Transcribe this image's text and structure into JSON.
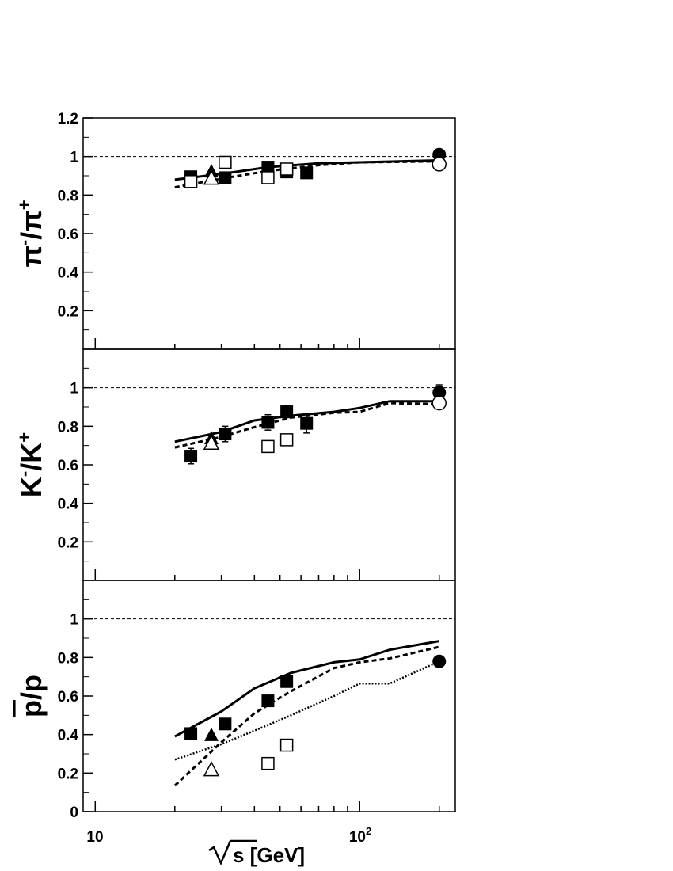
{
  "chart_data": [
    {
      "type": "scatter",
      "ylabel": "π⁻/π⁺",
      "ylabel_parts": {
        "base1": "π",
        "sup1": "-",
        "mid": "/π",
        "sup2": "+"
      },
      "xlabel": "",
      "xscale": "log",
      "xlim": [
        9,
        230
      ],
      "ylim": [
        0,
        1.2
      ],
      "yticks": [
        0.2,
        0.4,
        0.6,
        0.8,
        1,
        1.2
      ],
      "ytick_labels": [
        "0.2",
        "0.4",
        "0.6",
        "0.8",
        "1",
        "1.2"
      ],
      "reference_line": 1,
      "series": [
        {
          "marker": "filled-square",
          "points": [
            [
              23,
              0.895
            ],
            [
              31,
              0.89
            ],
            [
              45,
              0.945
            ],
            [
              53,
              0.92
            ],
            [
              63,
              0.915
            ]
          ]
        },
        {
          "marker": "open-square",
          "points": [
            [
              23,
              0.87
            ],
            [
              31,
              0.97
            ],
            [
              45,
              0.89
            ],
            [
              53,
              0.935
            ]
          ]
        },
        {
          "marker": "filled-triangle",
          "points": [
            [
              27.5,
              0.92
            ]
          ]
        },
        {
          "marker": "open-triangle",
          "points": [
            [
              27.5,
              0.885
            ]
          ]
        },
        {
          "marker": "filled-circle",
          "points": [
            [
              200,
              1.01
            ]
          ]
        },
        {
          "marker": "open-circle",
          "points": [
            [
              200,
              0.96
            ]
          ]
        },
        {
          "line": "solid",
          "points": [
            [
              20,
              0.88
            ],
            [
              30,
              0.91
            ],
            [
              45,
              0.945
            ],
            [
              70,
              0.965
            ],
            [
              100,
              0.97
            ],
            [
              200,
              0.98
            ]
          ]
        },
        {
          "line": "dashed",
          "points": [
            [
              20,
              0.84
            ],
            [
              30,
              0.885
            ],
            [
              45,
              0.925
            ],
            [
              70,
              0.955
            ],
            [
              100,
              0.97
            ],
            [
              200,
              0.975
            ]
          ]
        }
      ]
    },
    {
      "type": "scatter",
      "ylabel": "K⁻/K⁺",
      "ylabel_parts": {
        "base1": "K",
        "sup1": "-",
        "mid": "/K",
        "sup2": "+"
      },
      "xlabel": "",
      "xscale": "log",
      "xlim": [
        9,
        230
      ],
      "ylim": [
        0,
        1.2
      ],
      "yticks": [
        0.2,
        0.4,
        0.6,
        0.8,
        1
      ],
      "ytick_labels": [
        "0.2",
        "0.4",
        "0.6",
        "0.8",
        "1"
      ],
      "reference_line": 1,
      "series": [
        {
          "marker": "filled-square",
          "points": [
            [
              23,
              0.645
            ],
            [
              31,
              0.76
            ],
            [
              45,
              0.82
            ],
            [
              53,
              0.875
            ],
            [
              63,
              0.815
            ]
          ],
          "errors": [
            0.04,
            0.04,
            0.04,
            0.03,
            0.05
          ]
        },
        {
          "marker": "open-square",
          "points": [
            [
              45,
              0.695
            ],
            [
              53,
              0.73
            ]
          ]
        },
        {
          "marker": "filled-triangle",
          "points": [
            [
              27.5,
              0.735
            ]
          ]
        },
        {
          "marker": "open-triangle",
          "points": [
            [
              27.5,
              0.71
            ]
          ]
        },
        {
          "marker": "filled-circle",
          "points": [
            [
              200,
              0.975
            ]
          ],
          "errors": [
            0.04
          ]
        },
        {
          "marker": "open-circle",
          "points": [
            [
              200,
              0.92
            ]
          ]
        },
        {
          "line": "solid",
          "points": [
            [
              20,
              0.72
            ],
            [
              30,
              0.77
            ],
            [
              40,
              0.83
            ],
            [
              55,
              0.855
            ],
            [
              80,
              0.875
            ],
            [
              100,
              0.895
            ],
            [
              130,
              0.93
            ],
            [
              200,
              0.93
            ]
          ]
        },
        {
          "line": "dashed",
          "points": [
            [
              20,
              0.69
            ],
            [
              30,
              0.745
            ],
            [
              40,
              0.795
            ],
            [
              55,
              0.845
            ],
            [
              80,
              0.87
            ],
            [
              100,
              0.875
            ],
            [
              130,
              0.92
            ],
            [
              200,
              0.915
            ]
          ]
        }
      ]
    },
    {
      "type": "scatter",
      "ylabel": "p̄/p",
      "ylabel_parts": {
        "base1": "p",
        "sup1": "",
        "mid": "/p",
        "sup2": "",
        "overline_first": true
      },
      "xlabel": "√s [GeV]",
      "xlabel_text": "s [GeV]",
      "xscale": "log",
      "xlim": [
        9,
        230
      ],
      "ylim": [
        0,
        1.2
      ],
      "yticks": [
        0,
        0.2,
        0.4,
        0.6,
        0.8,
        1
      ],
      "ytick_labels": [
        "0",
        "0.2",
        "0.4",
        "0.6",
        "0.8",
        "1"
      ],
      "xticks_major": [
        10,
        100
      ],
      "xtick_labels": [
        {
          "base": "10",
          "exp": ""
        },
        {
          "base": "10",
          "exp": "2"
        }
      ],
      "reference_line": 1,
      "series": [
        {
          "marker": "filled-square",
          "points": [
            [
              23,
              0.405
            ],
            [
              31,
              0.455
            ],
            [
              45,
              0.575
            ],
            [
              53,
              0.675
            ]
          ]
        },
        {
          "marker": "open-square",
          "points": [
            [
              45,
              0.25
            ],
            [
              53,
              0.345
            ]
          ]
        },
        {
          "marker": "filled-triangle",
          "points": [
            [
              27.5,
              0.395
            ]
          ]
        },
        {
          "marker": "open-triangle",
          "points": [
            [
              27.5,
              0.215
            ]
          ]
        },
        {
          "marker": "filled-circle",
          "points": [
            [
              200,
              0.78
            ]
          ]
        },
        {
          "line": "solid",
          "points": [
            [
              20,
              0.39
            ],
            [
              30,
              0.52
            ],
            [
              40,
              0.64
            ],
            [
              55,
              0.72
            ],
            [
              80,
              0.775
            ],
            [
              100,
              0.79
            ],
            [
              130,
              0.84
            ],
            [
              200,
              0.885
            ]
          ]
        },
        {
          "line": "dashed",
          "points": [
            [
              20,
              0.135
            ],
            [
              30,
              0.36
            ],
            [
              40,
              0.51
            ],
            [
              55,
              0.625
            ],
            [
              80,
              0.745
            ],
            [
              100,
              0.775
            ],
            [
              130,
              0.795
            ],
            [
              200,
              0.855
            ]
          ]
        },
        {
          "line": "dotted",
          "points": [
            [
              20,
              0.27
            ],
            [
              30,
              0.35
            ],
            [
              40,
              0.42
            ],
            [
              55,
              0.5
            ],
            [
              80,
              0.6
            ],
            [
              100,
              0.665
            ],
            [
              130,
              0.665
            ],
            [
              200,
              0.78
            ]
          ]
        }
      ]
    }
  ]
}
